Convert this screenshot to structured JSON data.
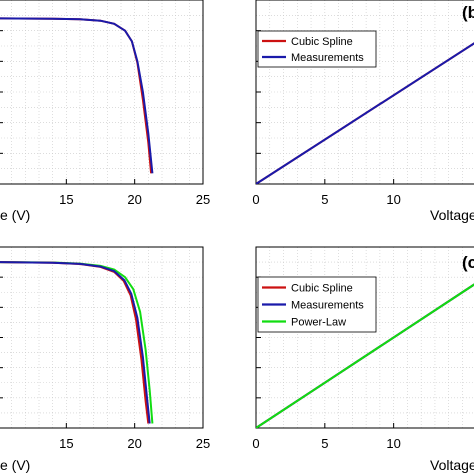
{
  "chart_data": [
    {
      "panel": "top-left",
      "type": "line",
      "xlim": [
        10,
        25
      ],
      "ylim": [
        0,
        1.2
      ],
      "xticks": [
        15,
        20,
        25
      ],
      "xlabel_fragment": "e (V)",
      "grid": "on",
      "series": [
        {
          "color": "#cc1111",
          "x": [
            10,
            14,
            16,
            17.5,
            18.5,
            19.3,
            19.8,
            20.2,
            20.6,
            21.0,
            21.2
          ],
          "y": [
            1.08,
            1.078,
            1.074,
            1.065,
            1.045,
            1.0,
            0.93,
            0.79,
            0.55,
            0.27,
            0.07
          ]
        },
        {
          "color": "#1a1aaa",
          "x": [
            10,
            14,
            16,
            17.5,
            18.5,
            19.3,
            19.8,
            20.2,
            20.6,
            21.0,
            21.3
          ],
          "y": [
            1.08,
            1.078,
            1.074,
            1.065,
            1.045,
            1.0,
            0.93,
            0.8,
            0.6,
            0.33,
            0.07
          ]
        }
      ]
    },
    {
      "panel": "top-right",
      "type": "line",
      "xlim": [
        0,
        17
      ],
      "ylim": [
        0,
        1.0
      ],
      "xticks": [
        0,
        5,
        10
      ],
      "xlabel_fragment": "Voltage",
      "panel_label": "(b",
      "grid": "on",
      "legend": "top-left",
      "series": [
        {
          "name": "Cubic Spline",
          "color": "#cc1111",
          "x": [
            0,
            17
          ],
          "y": [
            0,
            0.82
          ]
        },
        {
          "name": "Measurements",
          "color": "#1a1aaa",
          "x": [
            0,
            17
          ],
          "y": [
            0,
            0.82
          ]
        }
      ]
    },
    {
      "panel": "bottom-left",
      "type": "line",
      "xlim": [
        10,
        25
      ],
      "ylim": [
        0,
        1.2
      ],
      "xticks": [
        15,
        20,
        25
      ],
      "xlabel_fragment": "e (V)",
      "grid": "on",
      "series": [
        {
          "color": "#11dd11",
          "x": [
            10,
            14,
            16,
            17.5,
            18.5,
            19.3,
            19.9,
            20.4,
            20.8,
            21.1,
            21.3
          ],
          "y": [
            1.1,
            1.097,
            1.09,
            1.075,
            1.05,
            1.0,
            0.92,
            0.77,
            0.52,
            0.25,
            0.03
          ]
        },
        {
          "color": "#cc1111",
          "x": [
            10,
            14,
            16,
            17.5,
            18.5,
            19.2,
            19.7,
            20.1,
            20.5,
            20.8,
            21.0
          ],
          "y": [
            1.1,
            1.096,
            1.087,
            1.068,
            1.035,
            0.975,
            0.88,
            0.72,
            0.45,
            0.18,
            0.03
          ]
        },
        {
          "color": "#1a1aaa",
          "x": [
            10,
            14,
            16,
            17.5,
            18.5,
            19.25,
            19.75,
            20.2,
            20.6,
            20.9,
            21.1
          ],
          "y": [
            1.1,
            1.096,
            1.088,
            1.07,
            1.04,
            0.98,
            0.89,
            0.73,
            0.47,
            0.2,
            0.03
          ]
        }
      ]
    },
    {
      "panel": "bottom-right",
      "type": "line",
      "xlim": [
        0,
        17
      ],
      "ylim": [
        0,
        1.0
      ],
      "xticks": [
        0,
        5,
        10
      ],
      "xlabel_fragment": "Voltage",
      "panel_label": "(c",
      "grid": "on",
      "legend": "top-left",
      "series": [
        {
          "name": "Cubic Spline",
          "color": "#cc1111",
          "x": [
            0,
            17
          ],
          "y": [
            0,
            0.85
          ]
        },
        {
          "name": "Measurements",
          "color": "#1a1aaa",
          "x": [
            0,
            17
          ],
          "y": [
            0,
            0.85
          ]
        },
        {
          "name": "Power-Law",
          "color": "#11dd11",
          "x": [
            0,
            17
          ],
          "y": [
            0,
            0.85
          ]
        }
      ]
    }
  ]
}
